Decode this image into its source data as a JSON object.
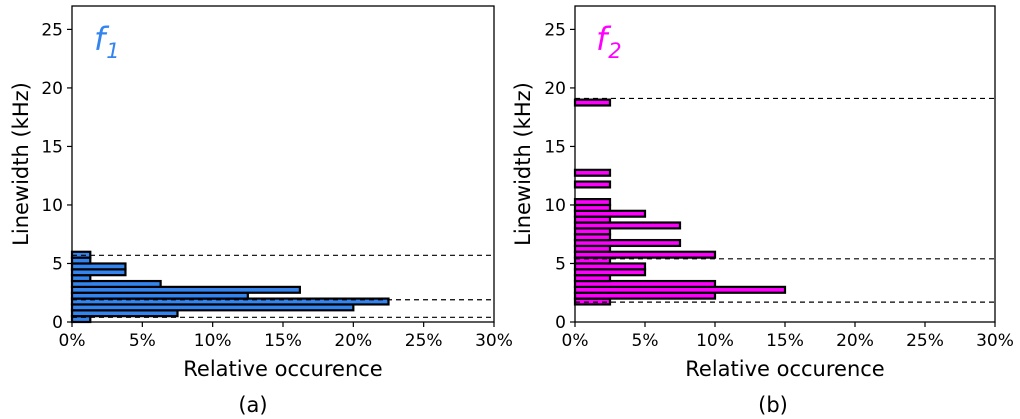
{
  "figure": {
    "panels": [
      {
        "caption": "(a)",
        "title_main": "f",
        "title_sub": "1",
        "color": "#3384ee",
        "xlabel": "Relative occurence",
        "ylabel": "Linewidth (kHz)"
      },
      {
        "caption": "(b)",
        "title_main": "f",
        "title_sub": "2",
        "color": "#ff00ff",
        "xlabel": "Relative occurence",
        "ylabel": "Linewidth (kHz)"
      }
    ]
  },
  "chart_data": [
    {
      "type": "bar",
      "orientation": "horizontal",
      "title": "f1",
      "xlabel": "Relative occurence",
      "ylabel": "Linewidth (kHz)",
      "xlim": [
        0,
        30
      ],
      "ylim": [
        0,
        27
      ],
      "xticks": [
        "0%",
        "5%",
        "10%",
        "15%",
        "20%",
        "25%",
        "30%"
      ],
      "yticks": [
        "0",
        "5",
        "10",
        "15",
        "20",
        "25"
      ],
      "grid": false,
      "bin_height": 0.5,
      "bins": [
        {
          "y0": 0.0,
          "pct": 1.3
        },
        {
          "y0": 0.5,
          "pct": 7.5
        },
        {
          "y0": 1.0,
          "pct": 20.0
        },
        {
          "y0": 1.5,
          "pct": 22.5
        },
        {
          "y0": 2.0,
          "pct": 12.5
        },
        {
          "y0": 2.5,
          "pct": 16.2
        },
        {
          "y0": 3.0,
          "pct": 6.3
        },
        {
          "y0": 3.5,
          "pct": 1.3
        },
        {
          "y0": 4.0,
          "pct": 3.8
        },
        {
          "y0": 4.5,
          "pct": 3.8
        },
        {
          "y0": 5.0,
          "pct": 1.3
        },
        {
          "y0": 5.5,
          "pct": 1.3
        }
      ],
      "reference_lines": [
        0.4,
        1.9,
        5.7
      ]
    },
    {
      "type": "bar",
      "orientation": "horizontal",
      "title": "f2",
      "xlabel": "Relative occurence",
      "ylabel": "Linewidth (kHz)",
      "xlim": [
        0,
        30
      ],
      "ylim": [
        0,
        27
      ],
      "xticks": [
        "0%",
        "5%",
        "10%",
        "15%",
        "20%",
        "25%",
        "30%"
      ],
      "yticks": [
        "0",
        "5",
        "10",
        "15",
        "20",
        "25"
      ],
      "grid": false,
      "bin_height": 0.5,
      "bins": [
        {
          "y0": 1.5,
          "pct": 2.5
        },
        {
          "y0": 2.0,
          "pct": 10.0
        },
        {
          "y0": 2.5,
          "pct": 15.0
        },
        {
          "y0": 3.0,
          "pct": 10.0
        },
        {
          "y0": 3.5,
          "pct": 2.5
        },
        {
          "y0": 4.0,
          "pct": 5.0
        },
        {
          "y0": 4.5,
          "pct": 5.0
        },
        {
          "y0": 5.0,
          "pct": 2.5
        },
        {
          "y0": 5.5,
          "pct": 10.0
        },
        {
          "y0": 6.0,
          "pct": 2.5
        },
        {
          "y0": 6.5,
          "pct": 7.5
        },
        {
          "y0": 7.0,
          "pct": 2.5
        },
        {
          "y0": 7.5,
          "pct": 2.5
        },
        {
          "y0": 8.0,
          "pct": 7.5
        },
        {
          "y0": 8.5,
          "pct": 2.5
        },
        {
          "y0": 9.0,
          "pct": 5.0
        },
        {
          "y0": 9.5,
          "pct": 2.5
        },
        {
          "y0": 10.0,
          "pct": 2.5
        },
        {
          "y0": 11.5,
          "pct": 2.5
        },
        {
          "y0": 12.5,
          "pct": 2.5
        },
        {
          "y0": 18.5,
          "pct": 2.5
        }
      ],
      "reference_lines": [
        1.7,
        5.4,
        19.1
      ]
    }
  ]
}
